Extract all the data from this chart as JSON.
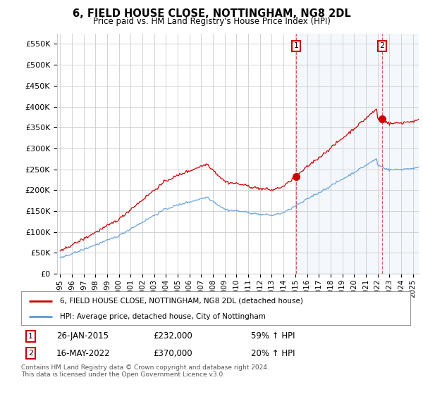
{
  "title": "6, FIELD HOUSE CLOSE, NOTTINGHAM, NG8 2DL",
  "subtitle": "Price paid vs. HM Land Registry's House Price Index (HPI)",
  "ylabel_ticks": [
    "£0",
    "£50K",
    "£100K",
    "£150K",
    "£200K",
    "£250K",
    "£300K",
    "£350K",
    "£400K",
    "£450K",
    "£500K",
    "£550K"
  ],
  "ytick_values": [
    0,
    50000,
    100000,
    150000,
    200000,
    250000,
    300000,
    350000,
    400000,
    450000,
    500000,
    550000
  ],
  "ylim": [
    0,
    575000
  ],
  "xlim_left": 1994.75,
  "xlim_right": 2025.5,
  "legend_line1": "6, FIELD HOUSE CLOSE, NOTTINGHAM, NG8 2DL (detached house)",
  "legend_line2": "HPI: Average price, detached house, City of Nottingham",
  "annotation1_date": "26-JAN-2015",
  "annotation1_price": "£232,000",
  "annotation1_hpi": "59% ↑ HPI",
  "annotation2_date": "16-MAY-2022",
  "annotation2_price": "£370,000",
  "annotation2_hpi": "20% ↑ HPI",
  "footer": "Contains HM Land Registry data © Crown copyright and database right 2024.\nThis data is licensed under the Open Government Licence v3.0.",
  "sale_color": "#cc0000",
  "hpi_color": "#5b9bd5",
  "shade_color": "#ddeeff",
  "sale1_x": 2015.069,
  "sale1_y": 232000,
  "sale2_x": 2022.374,
  "sale2_y": 370000,
  "background_color": "#ffffff",
  "grid_color": "#cccccc"
}
